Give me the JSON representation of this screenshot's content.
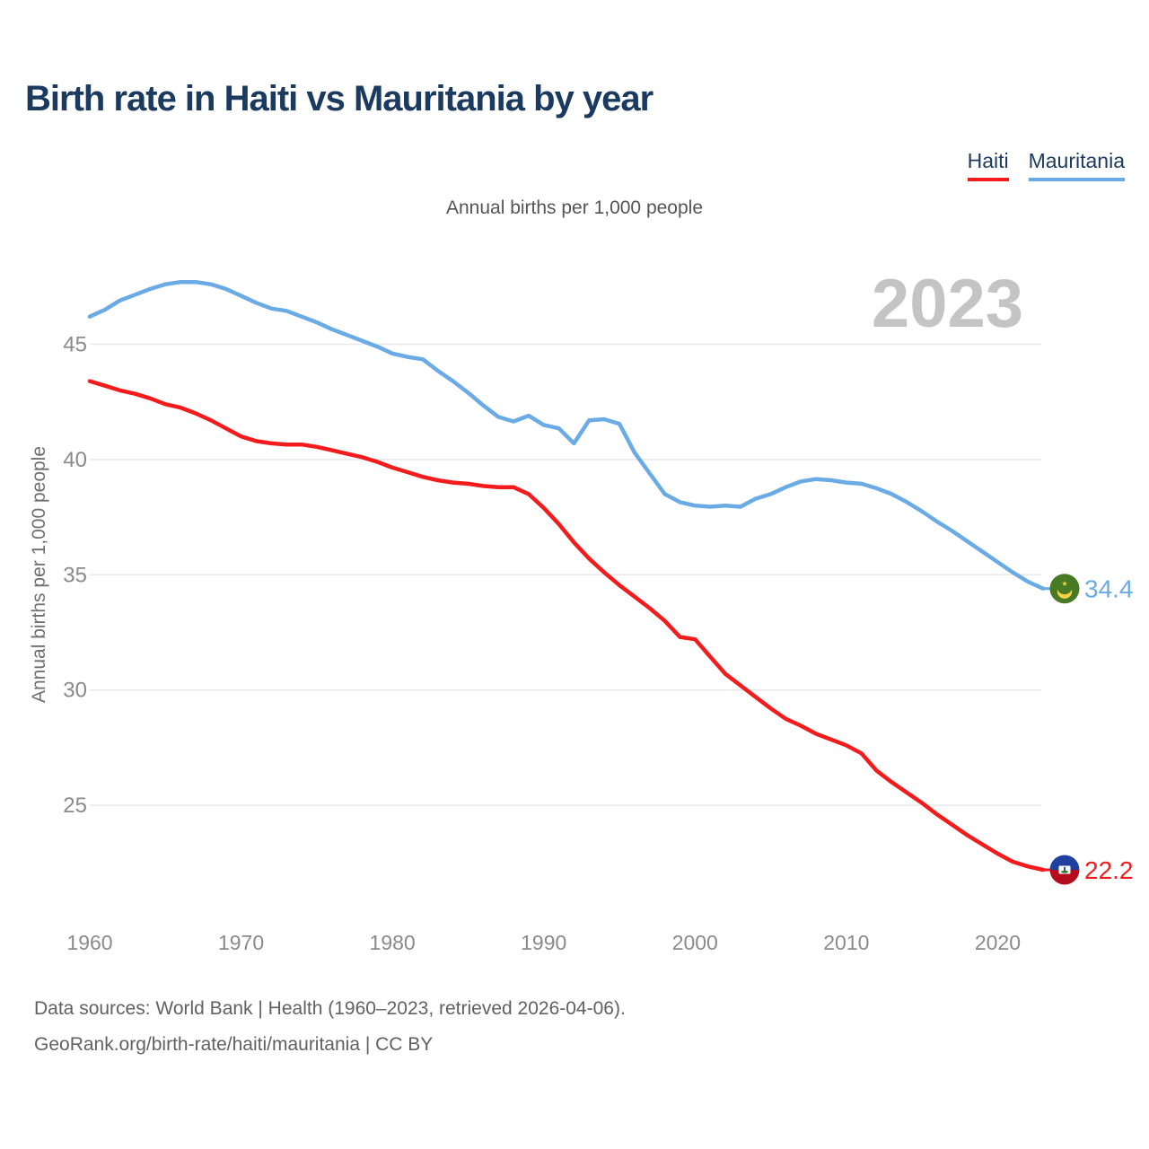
{
  "header": {
    "title": "Birth rate in Haiti vs Mauritania by year"
  },
  "chart_data": {
    "type": "line",
    "title": "Birth rate in Haiti vs Mauritania by year",
    "subtitle": "Annual births per 1,000 people",
    "ylabel": "Annual births per 1,000 people",
    "xlabel": "",
    "watermark": "2023",
    "grid": true,
    "legend_position": "top-right",
    "x_ticks": [
      1960,
      1970,
      1980,
      1990,
      2000,
      2010,
      2020
    ],
    "y_ticks": [
      45,
      40,
      35,
      30,
      25
    ],
    "ylim": [
      22,
      48
    ],
    "x_range": [
      1960,
      2023
    ],
    "years": [
      1960,
      1961,
      1962,
      1963,
      1964,
      1965,
      1966,
      1967,
      1968,
      1969,
      1970,
      1971,
      1972,
      1973,
      1974,
      1975,
      1976,
      1977,
      1978,
      1979,
      1980,
      1981,
      1982,
      1983,
      1984,
      1985,
      1986,
      1987,
      1988,
      1989,
      1990,
      1991,
      1992,
      1993,
      1994,
      1995,
      1996,
      1997,
      1998,
      1999,
      2000,
      2001,
      2002,
      2003,
      2004,
      2005,
      2006,
      2007,
      2008,
      2009,
      2010,
      2011,
      2012,
      2013,
      2014,
      2015,
      2016,
      2017,
      2018,
      2019,
      2020,
      2021,
      2022,
      2023
    ],
    "series": [
      {
        "name": "Haiti",
        "color": "#f31b1b",
        "end_label": "22.2",
        "flag_icon": "haiti-flag-icon",
        "values": [
          43.4,
          43.2,
          43.0,
          42.85,
          42.65,
          42.4,
          42.25,
          42.0,
          41.7,
          41.35,
          41.0,
          40.8,
          40.7,
          40.65,
          40.65,
          40.55,
          40.4,
          40.25,
          40.1,
          39.9,
          39.65,
          39.45,
          39.25,
          39.1,
          39.0,
          38.95,
          38.85,
          38.8,
          38.8,
          38.5,
          37.9,
          37.2,
          36.4,
          35.7,
          35.1,
          34.55,
          34.05,
          33.55,
          33.0,
          32.3,
          32.2,
          31.45,
          30.7,
          30.2,
          29.7,
          29.2,
          28.75,
          28.45,
          28.1,
          27.85,
          27.6,
          27.25,
          26.5,
          26.0,
          25.55,
          25.1,
          24.6,
          24.15,
          23.7,
          23.3,
          22.9,
          22.55,
          22.35,
          22.2
        ]
      },
      {
        "name": "Mauritania",
        "color": "#6aabe6",
        "end_label": "34.4",
        "flag_icon": "mauritania-flag-icon",
        "values": [
          46.2,
          46.5,
          46.9,
          47.15,
          47.4,
          47.6,
          47.7,
          47.7,
          47.6,
          47.4,
          47.1,
          46.8,
          46.55,
          46.45,
          46.2,
          45.95,
          45.65,
          45.4,
          45.15,
          44.9,
          44.6,
          44.45,
          44.35,
          43.85,
          43.4,
          42.9,
          42.35,
          41.85,
          41.65,
          41.9,
          41.5,
          41.35,
          40.7,
          41.7,
          41.75,
          41.55,
          40.3,
          39.4,
          38.5,
          38.15,
          38.0,
          37.95,
          38.0,
          37.95,
          38.3,
          38.5,
          38.8,
          39.05,
          39.15,
          39.1,
          39.0,
          38.95,
          38.75,
          38.5,
          38.15,
          37.75,
          37.3,
          36.9,
          36.45,
          36.0,
          35.55,
          35.1,
          34.7,
          34.4
        ]
      }
    ]
  },
  "footer": {
    "line1": "Data sources: World Bank | Health (1960–2023, retrieved 2026-04-06).",
    "line2": "GeoRank.org/birth-rate/haiti/mauritania | CC BY"
  },
  "theme": {
    "title_color": "#1b3a5f",
    "watermark_color": "#c4c4c4",
    "grid_color": "#e8e8e8",
    "axis_text_color": "#8a8a8a",
    "haiti_flag_top": "#20409f",
    "haiti_flag_bottom": "#b30d1d",
    "mauritania_flag_green": "#487a24",
    "mauritania_flag_gold": "#f7d046"
  }
}
